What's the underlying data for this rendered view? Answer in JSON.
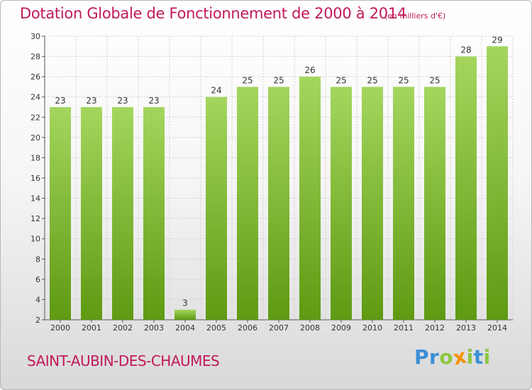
{
  "title": "Dotation Globale de Fonctionnement de 2000 à 2014",
  "subtitle": "(en milliers d'€)",
  "place": "SAINT-AUBIN-DES-CHAUMES",
  "logo": {
    "letters": [
      "P",
      "r",
      "o",
      "x",
      "i",
      "t",
      "i"
    ],
    "colors": [
      "#3a8fd6",
      "#3a8fd6",
      "#8cc63f",
      "#f39200",
      "#8cc63f",
      "#3a8fd6",
      "#8cc63f"
    ]
  },
  "colors": {
    "bar_top": "#a4d65e",
    "bar_bottom": "#5e9a12",
    "title": "#c2185b"
  },
  "chart_data": {
    "type": "bar",
    "title": "Dotation Globale de Fonctionnement de 2000 à 2014",
    "subtitle": "(en milliers d'€)",
    "categories": [
      "2000",
      "2001",
      "2002",
      "2003",
      "2004",
      "2005",
      "2006",
      "2007",
      "2008",
      "2009",
      "2010",
      "2011",
      "2012",
      "2013",
      "2014"
    ],
    "values": [
      23,
      23,
      23,
      23,
      3,
      24,
      25,
      25,
      26,
      25,
      25,
      25,
      25,
      28,
      29
    ],
    "ylim": [
      2,
      30
    ],
    "yticks": [
      2,
      4,
      6,
      8,
      10,
      12,
      14,
      16,
      18,
      20,
      22,
      24,
      26,
      28,
      30
    ],
    "grid": true,
    "legend": "none"
  }
}
